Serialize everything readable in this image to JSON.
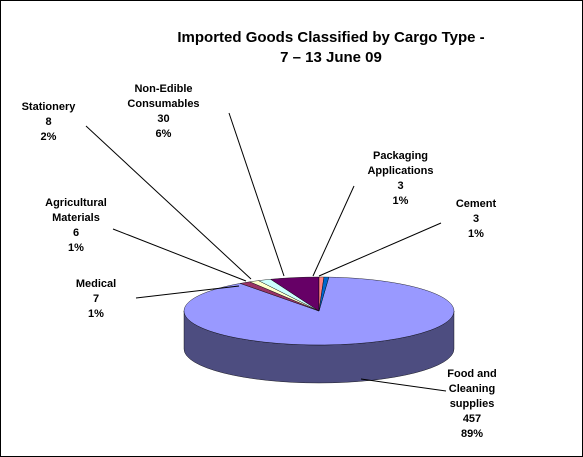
{
  "chart_data": {
    "type": "pie3d",
    "title": "Imported Goods Classified by Cargo Type -",
    "subtitle": "7 – 13 June 09",
    "categories": [
      "Food and Cleaning supplies",
      "Medical",
      "Agricultural Materials",
      "Stationery",
      "Non-Edible Consumables",
      "Packaging Applications",
      "Cement"
    ],
    "values": [
      457,
      7,
      6,
      8,
      30,
      3,
      3
    ],
    "percent_labels": [
      "89%",
      "1%",
      "1%",
      "2%",
      "6%",
      "1%",
      "1%"
    ],
    "colors": [
      "#9999ff",
      "#993366",
      "#ffffcc",
      "#ccffff",
      "#660066",
      "#ff8080",
      "#0066cc"
    ]
  }
}
